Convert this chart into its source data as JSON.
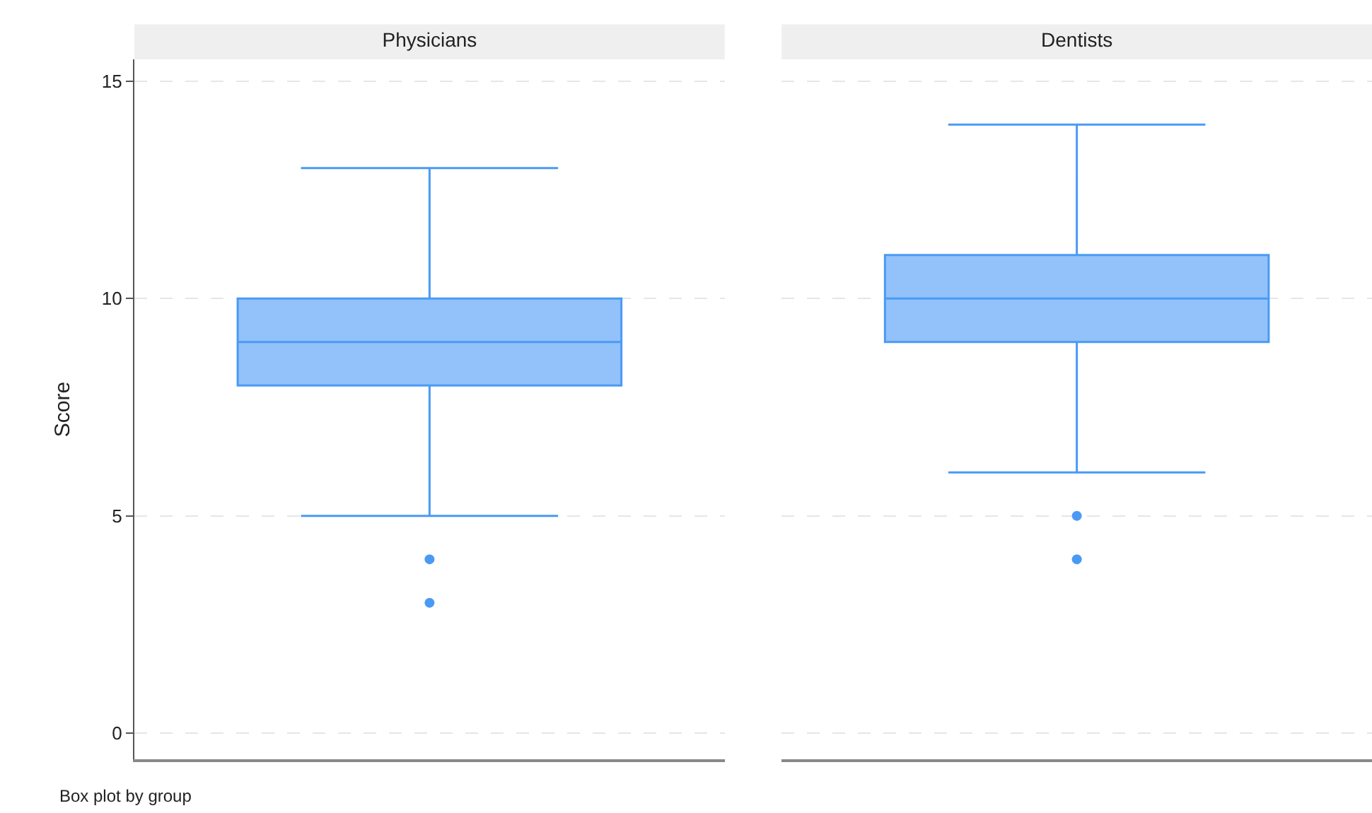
{
  "chart_data": {
    "type": "box",
    "ylabel": "Score",
    "categories": [
      "Physicians",
      "Dentists"
    ],
    "ylim": [
      -0.6,
      15.5
    ],
    "yticks": [
      0,
      5,
      10,
      15
    ],
    "grid": "y",
    "annotations": [
      "Box plot by group"
    ],
    "series": [
      {
        "color": "#4a9af5",
        "boxes": [
          {
            "low": 5,
            "q1": 8,
            "median": 9,
            "q3": 10,
            "high": 13,
            "outliers": [
              4,
              3
            ]
          },
          {
            "low": 6,
            "q1": 9,
            "median": 10,
            "q3": 11,
            "high": 14,
            "outliers": [
              5,
              4
            ]
          }
        ]
      }
    ]
  }
}
